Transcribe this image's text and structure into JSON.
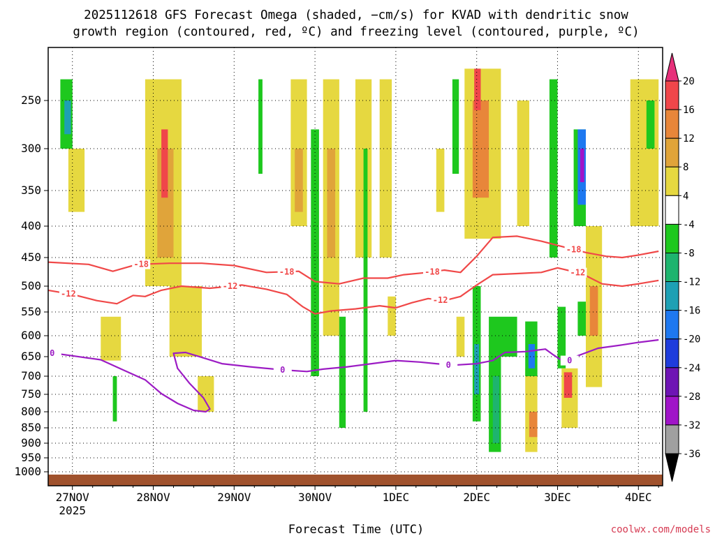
{
  "chart_data": {
    "type": "heatmap",
    "title_line1": "2025112618 GFS Forecast Omega (shaded, −cm/s) for KVAD with dendritic snow",
    "title_line2": "growth region (contoured, red, ºC) and freezing level (contoured, purple, ºC)",
    "xlabel": "Forecast Time (UTC)",
    "credit": "coolwx.com/models",
    "xlim": [
      -0.3,
      7.3
    ],
    "x_ticks": [
      {
        "x": 0,
        "label": "27NOV",
        "sublabel": "2025"
      },
      {
        "x": 1,
        "label": "28NOV"
      },
      {
        "x": 2,
        "label": "29NOV"
      },
      {
        "x": 3,
        "label": "30NOV"
      },
      {
        "x": 4,
        "label": "1DEC"
      },
      {
        "x": 5,
        "label": "2DEC"
      },
      {
        "x": 6,
        "label": "3DEC"
      },
      {
        "x": 7,
        "label": "4DEC"
      }
    ],
    "ylim_hpa": [
      1020,
      200
    ],
    "y_ticks": [
      250,
      300,
      350,
      400,
      450,
      500,
      550,
      600,
      650,
      700,
      750,
      800,
      850,
      900,
      950,
      1000
    ],
    "colorbar": {
      "ticks": [
        "20",
        "16",
        "12",
        "8",
        "4",
        "-4",
        "-8",
        "-12",
        "-16",
        "-20",
        "-24",
        "-28",
        "-32",
        "-36"
      ],
      "bands": [
        {
          "range": "16 to 20",
          "color": "#f0464a"
        },
        {
          "range": "12 to 16",
          "color": "#e8863a"
        },
        {
          "range": "8 to 12",
          "color": "#e0a43a"
        },
        {
          "range": "4 to 8",
          "color": "#e6d840"
        },
        {
          "range": "-4 to 4",
          "color": "#ffffff"
        },
        {
          "range": "-8 to -4",
          "color": "#1ec81e"
        },
        {
          "range": "-12 to -8",
          "color": "#1eb46e"
        },
        {
          "range": "-16 to -12",
          "color": "#1ea0b4"
        },
        {
          "range": "-20 to -16",
          "color": "#1e78f0"
        },
        {
          "range": "-24 to -20",
          "color": "#1e3cdc"
        },
        {
          "range": "-28 to -24",
          "color": "#6e14b4"
        },
        {
          "range": "-32 to -28",
          "color": "#a014c8"
        },
        {
          "range": "-36 to -32",
          "color": "#a0a0a0"
        }
      ],
      "over_color": "#e6307a",
      "under_color": "#000000"
    },
    "surface_color": "#a0522d",
    "omega_cells": [
      {
        "t0": -0.15,
        "t1": 0.0,
        "p0": 230,
        "p1": 300,
        "v": -6
      },
      {
        "t0": -0.1,
        "t1": -0.02,
        "p0": 250,
        "p1": 285,
        "v": -14
      },
      {
        "t0": -0.05,
        "t1": 0.15,
        "p0": 300,
        "p1": 380,
        "v": 5
      },
      {
        "t0": 0.35,
        "t1": 0.6,
        "p0": 560,
        "p1": 660,
        "v": 5
      },
      {
        "t0": 0.5,
        "t1": 0.55,
        "p0": 700,
        "p1": 830,
        "v": -6
      },
      {
        "t0": 0.9,
        "t1": 1.35,
        "p0": 230,
        "p1": 500,
        "v": 5
      },
      {
        "t0": 1.05,
        "t1": 1.25,
        "p0": 300,
        "p1": 450,
        "v": 9
      },
      {
        "t0": 1.1,
        "t1": 1.18,
        "p0": 280,
        "p1": 360,
        "v": 18
      },
      {
        "t0": 1.2,
        "t1": 1.6,
        "p0": 500,
        "p1": 650,
        "v": 5
      },
      {
        "t0": 1.55,
        "t1": 1.75,
        "p0": 700,
        "p1": 800,
        "v": 5
      },
      {
        "t0": 2.3,
        "t1": 2.35,
        "p0": 230,
        "p1": 330,
        "v": -6
      },
      {
        "t0": 2.7,
        "t1": 2.9,
        "p0": 230,
        "p1": 400,
        "v": 5
      },
      {
        "t0": 2.75,
        "t1": 2.85,
        "p0": 300,
        "p1": 380,
        "v": 9
      },
      {
        "t0": 2.95,
        "t1": 3.05,
        "p0": 280,
        "p1": 700,
        "v": -6
      },
      {
        "t0": 3.1,
        "t1": 3.3,
        "p0": 230,
        "p1": 600,
        "v": 5
      },
      {
        "t0": 3.15,
        "t1": 3.25,
        "p0": 300,
        "p1": 450,
        "v": 9
      },
      {
        "t0": 3.3,
        "t1": 3.38,
        "p0": 560,
        "p1": 850,
        "v": -6
      },
      {
        "t0": 3.5,
        "t1": 3.7,
        "p0": 230,
        "p1": 450,
        "v": 5
      },
      {
        "t0": 3.6,
        "t1": 3.65,
        "p0": 300,
        "p1": 800,
        "v": -6
      },
      {
        "t0": 3.8,
        "t1": 3.95,
        "p0": 230,
        "p1": 450,
        "v": 5
      },
      {
        "t0": 3.9,
        "t1": 4.0,
        "p0": 520,
        "p1": 600,
        "v": 5
      },
      {
        "t0": 4.5,
        "t1": 4.6,
        "p0": 300,
        "p1": 380,
        "v": 5
      },
      {
        "t0": 4.7,
        "t1": 4.78,
        "p0": 230,
        "p1": 330,
        "v": -6
      },
      {
        "t0": 4.75,
        "t1": 4.85,
        "p0": 560,
        "p1": 650,
        "v": 5
      },
      {
        "t0": 4.85,
        "t1": 5.3,
        "p0": 220,
        "p1": 420,
        "v": 5
      },
      {
        "t0": 4.95,
        "t1": 5.15,
        "p0": 250,
        "p1": 360,
        "v": 12
      },
      {
        "t0": 4.97,
        "t1": 5.05,
        "p0": 220,
        "p1": 260,
        "v": 18
      },
      {
        "t0": 4.95,
        "t1": 5.05,
        "p0": 500,
        "p1": 830,
        "v": -6
      },
      {
        "t0": 4.97,
        "t1": 5.03,
        "p0": 620,
        "p1": 750,
        "v": -14
      },
      {
        "t0": 5.15,
        "t1": 5.3,
        "p0": 560,
        "p1": 930,
        "v": -6
      },
      {
        "t0": 5.2,
        "t1": 5.28,
        "p0": 700,
        "p1": 900,
        "v": -10
      },
      {
        "t0": 5.3,
        "t1": 5.5,
        "p0": 560,
        "p1": 650,
        "v": -6
      },
      {
        "t0": 5.5,
        "t1": 5.65,
        "p0": 250,
        "p1": 400,
        "v": 5
      },
      {
        "t0": 5.6,
        "t1": 5.75,
        "p0": 680,
        "p1": 930,
        "v": 5
      },
      {
        "t0": 5.65,
        "t1": 5.75,
        "p0": 800,
        "p1": 880,
        "v": 12
      },
      {
        "t0": 5.6,
        "t1": 5.75,
        "p0": 570,
        "p1": 700,
        "v": -6
      },
      {
        "t0": 5.64,
        "t1": 5.72,
        "p0": 620,
        "p1": 680,
        "v": -16
      },
      {
        "t0": 5.9,
        "t1": 6.0,
        "p0": 230,
        "p1": 450,
        "v": -6
      },
      {
        "t0": 6.0,
        "t1": 6.1,
        "p0": 540,
        "p1": 680,
        "v": -6
      },
      {
        "t0": 6.05,
        "t1": 6.25,
        "p0": 680,
        "p1": 850,
        "v": 5
      },
      {
        "t0": 6.08,
        "t1": 6.18,
        "p0": 690,
        "p1": 760,
        "v": 17
      },
      {
        "t0": 6.2,
        "t1": 6.35,
        "p0": 280,
        "p1": 400,
        "v": -6
      },
      {
        "t0": 6.25,
        "t1": 6.35,
        "p0": 280,
        "p1": 370,
        "v": -16
      },
      {
        "t0": 6.28,
        "t1": 6.33,
        "p0": 300,
        "p1": 340,
        "v": -30
      },
      {
        "t0": 6.25,
        "t1": 6.35,
        "p0": 530,
        "p1": 600,
        "v": -6
      },
      {
        "t0": 6.35,
        "t1": 6.55,
        "p0": 400,
        "p1": 730,
        "v": 5
      },
      {
        "t0": 6.4,
        "t1": 6.5,
        "p0": 500,
        "p1": 600,
        "v": 12
      },
      {
        "t0": 6.9,
        "t1": 7.25,
        "p0": 230,
        "p1": 400,
        "v": 5
      },
      {
        "t0": 7.1,
        "t1": 7.2,
        "p0": 250,
        "p1": 300,
        "v": -6
      }
    ],
    "contours": [
      {
        "label": "-18",
        "color": "#f04848",
        "label_positions": [
          0.85,
          2.65,
          4.45,
          6.2
        ],
        "points": [
          [
            -0.3,
            458
          ],
          [
            0.2,
            462
          ],
          [
            0.5,
            474
          ],
          [
            0.8,
            462
          ],
          [
            1.2,
            460
          ],
          [
            1.6,
            460
          ],
          [
            2.0,
            464
          ],
          [
            2.4,
            476
          ],
          [
            2.8,
            474
          ],
          [
            3.0,
            492
          ],
          [
            3.3,
            496
          ],
          [
            3.6,
            486
          ],
          [
            3.9,
            486
          ],
          [
            4.1,
            480
          ],
          [
            4.4,
            476
          ],
          [
            4.6,
            472
          ],
          [
            4.8,
            476
          ],
          [
            5.0,
            448
          ],
          [
            5.2,
            418
          ],
          [
            5.5,
            416
          ],
          [
            5.8,
            424
          ],
          [
            6.1,
            434
          ],
          [
            6.35,
            442
          ],
          [
            6.6,
            448
          ],
          [
            6.8,
            450
          ],
          [
            7.0,
            446
          ],
          [
            7.25,
            440
          ]
        ]
      },
      {
        "label": "-12",
        "color": "#f04848",
        "label_positions": [
          -0.05,
          1.95,
          4.55,
          6.25
        ],
        "points": [
          [
            -0.3,
            508
          ],
          [
            0.0,
            516
          ],
          [
            0.3,
            528
          ],
          [
            0.55,
            534
          ],
          [
            0.75,
            518
          ],
          [
            0.9,
            520
          ],
          [
            1.1,
            508
          ],
          [
            1.35,
            500
          ],
          [
            1.7,
            504
          ],
          [
            2.1,
            498
          ],
          [
            2.4,
            506
          ],
          [
            2.65,
            516
          ],
          [
            2.85,
            540
          ],
          [
            3.0,
            554
          ],
          [
            3.2,
            548
          ],
          [
            3.5,
            544
          ],
          [
            3.8,
            538
          ],
          [
            4.0,
            542
          ],
          [
            4.2,
            532
          ],
          [
            4.4,
            524
          ],
          [
            4.6,
            528
          ],
          [
            4.8,
            520
          ],
          [
            5.0,
            498
          ],
          [
            5.2,
            480
          ],
          [
            5.5,
            478
          ],
          [
            5.8,
            476
          ],
          [
            6.0,
            468
          ],
          [
            6.3,
            478
          ],
          [
            6.55,
            496
          ],
          [
            6.8,
            500
          ],
          [
            7.0,
            496
          ],
          [
            7.25,
            490
          ]
        ]
      },
      {
        "label": "0",
        "color": "#9c1cc4",
        "label_positions": [
          -0.25,
          2.6,
          4.65,
          6.15
        ],
        "points": [
          [
            -0.3,
            640
          ],
          [
            0.0,
            648
          ],
          [
            0.35,
            658
          ],
          [
            0.65,
            686
          ],
          [
            0.9,
            710
          ],
          [
            1.1,
            748
          ],
          [
            1.3,
            776
          ],
          [
            1.5,
            796
          ],
          [
            1.65,
            800
          ],
          [
            1.7,
            792
          ],
          [
            1.62,
            760
          ],
          [
            1.45,
            720
          ],
          [
            1.3,
            680
          ],
          [
            1.25,
            642
          ],
          [
            1.4,
            640
          ],
          [
            1.6,
            652
          ],
          [
            1.85,
            668
          ],
          [
            2.2,
            676
          ],
          [
            2.6,
            684
          ],
          [
            2.9,
            688
          ],
          [
            3.1,
            682
          ],
          [
            3.4,
            676
          ],
          [
            3.7,
            668
          ],
          [
            4.0,
            660
          ],
          [
            4.3,
            664
          ],
          [
            4.5,
            668
          ],
          [
            4.7,
            672
          ],
          [
            5.0,
            668
          ],
          [
            5.2,
            660
          ],
          [
            5.35,
            640
          ],
          [
            5.6,
            638
          ],
          [
            5.85,
            632
          ],
          [
            5.95,
            646
          ],
          [
            6.1,
            666
          ],
          [
            6.25,
            648
          ],
          [
            6.5,
            630
          ],
          [
            6.8,
            622
          ],
          [
            7.0,
            616
          ],
          [
            7.25,
            610
          ]
        ]
      }
    ]
  }
}
